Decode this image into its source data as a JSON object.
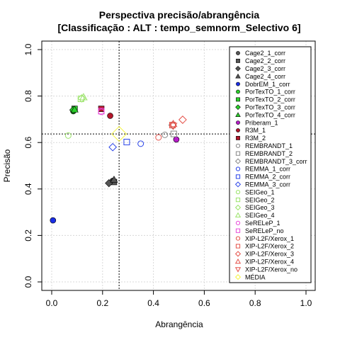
{
  "chart_data": {
    "type": "scatter",
    "title_line1": "Perspectiva precisão/abrangência",
    "title_line2": "[Classificação : ALT : tempo_semnorm_Selectivo 6]",
    "xlabel": "Abrangência",
    "ylabel": "Precisão",
    "xlim": [
      0,
      1
    ],
    "ylim": [
      0,
      1
    ],
    "xticks": [
      "0.0",
      "0.2",
      "0.4",
      "0.6",
      "0.8",
      "1.0"
    ],
    "yticks": [
      "0.0",
      "0.2",
      "0.4",
      "0.6",
      "0.8",
      "1.0"
    ],
    "xtick_values": [
      0,
      0.2,
      0.4,
      0.6,
      0.8,
      1.0
    ],
    "ytick_values": [
      0,
      0.2,
      0.4,
      0.6,
      0.8,
      1.0
    ],
    "grid": true,
    "legend_position": "top-right",
    "mean_lines": {
      "x": 0.265,
      "y": 0.637
    },
    "series": [
      {
        "name": "Cage2_1_corr",
        "color": "#555555",
        "shape": "circle",
        "fill": true,
        "x": 0.24,
        "y": 0.435
      },
      {
        "name": "Cage2_2_corr",
        "color": "#555555",
        "shape": "square",
        "fill": true,
        "x": 0.245,
        "y": 0.43
      },
      {
        "name": "Cage2_3_corr",
        "color": "#555555",
        "shape": "diamond",
        "fill": true,
        "x": 0.225,
        "y": 0.425
      },
      {
        "name": "Cage2_4_corr",
        "color": "#555555",
        "shape": "triangle",
        "fill": true,
        "x": 0.245,
        "y": 0.44
      },
      {
        "name": "DobrEM_1_corr",
        "color": "#1a2ee6",
        "shape": "circle",
        "fill": true,
        "x": 0.005,
        "y": 0.265
      },
      {
        "name": "PorTexTO_1_corr",
        "color": "#2bd12b",
        "shape": "circle",
        "fill": true,
        "x": 0.085,
        "y": 0.735
      },
      {
        "name": "PorTexTO_2_corr",
        "color": "#2bd12b",
        "shape": "square",
        "fill": true,
        "x": 0.09,
        "y": 0.745
      },
      {
        "name": "PorTexTO_3_corr",
        "color": "#2bd12b",
        "shape": "diamond",
        "fill": true,
        "x": 0.085,
        "y": 0.74
      },
      {
        "name": "PorTexTO_4_corr",
        "color": "#2bd12b",
        "shape": "triangle",
        "fill": true,
        "x": 0.09,
        "y": 0.742
      },
      {
        "name": "Priberam_1",
        "color": "#b71cc9",
        "shape": "circle",
        "fill": true,
        "x": 0.49,
        "y": 0.613
      },
      {
        "name": "R3M_1",
        "color": "#b2162a",
        "shape": "circle",
        "fill": true,
        "x": 0.23,
        "y": 0.715
      },
      {
        "name": "R3M_2",
        "color": "#b2162a",
        "shape": "square",
        "fill": true,
        "x": 0.195,
        "y": 0.745
      },
      {
        "name": "REMBRANDT_1",
        "color": "#888888",
        "shape": "circle",
        "fill": false,
        "x": 0.445,
        "y": 0.633
      },
      {
        "name": "REMBRANDT_2",
        "color": "#888888",
        "shape": "square",
        "fill": false,
        "x": 0.48,
        "y": 0.637
      },
      {
        "name": "REMBRANDT_3_corr",
        "color": "#888888",
        "shape": "diamond",
        "fill": false,
        "x": 0.475,
        "y": 0.675
      },
      {
        "name": "REMMA_1_corr",
        "color": "#2a44e8",
        "shape": "circle",
        "fill": false,
        "x": 0.35,
        "y": 0.595
      },
      {
        "name": "REMMA_2_corr",
        "color": "#2a44e8",
        "shape": "square",
        "fill": false,
        "x": 0.295,
        "y": 0.602
      },
      {
        "name": "REMMA_3_corr",
        "color": "#2a44e8",
        "shape": "diamond",
        "fill": false,
        "x": 0.24,
        "y": 0.58
      },
      {
        "name": "SEIGeo_1",
        "color": "#9be36a",
        "shape": "circle",
        "fill": false,
        "x": 0.065,
        "y": 0.63
      },
      {
        "name": "SEIGeo_2",
        "color": "#9be36a",
        "shape": "square",
        "fill": false,
        "x": 0.115,
        "y": 0.788
      },
      {
        "name": "SEIGeo_3",
        "color": "#9be36a",
        "shape": "diamond",
        "fill": false,
        "x": 0.118,
        "y": 0.79
      },
      {
        "name": "SEIGeo_4",
        "color": "#9be36a",
        "shape": "triangle",
        "fill": false,
        "x": 0.125,
        "y": 0.795
      },
      {
        "name": "SeRELeP_1",
        "color": "#e84ad9",
        "shape": "circle",
        "fill": false,
        "x": 0.195,
        "y": 0.732
      },
      {
        "name": "SeRELeP_no",
        "color": "#e84ad9",
        "shape": "square",
        "fill": false,
        "x": 0.195,
        "y": 0.735
      },
      {
        "name": "XIP-L2F/Xerox_1",
        "color": "#e5524a",
        "shape": "circle",
        "fill": false,
        "x": 0.42,
        "y": 0.622
      },
      {
        "name": "XIP-L2F/Xerox_2",
        "color": "#e5524a",
        "shape": "square",
        "fill": false,
        "x": 0.475,
        "y": 0.675
      },
      {
        "name": "XIP-L2F/Xerox_3",
        "color": "#e5524a",
        "shape": "diamond",
        "fill": false,
        "x": 0.515,
        "y": 0.698
      },
      {
        "name": "XIP-L2F/Xerox_4",
        "color": "#e5524a",
        "shape": "triangle",
        "fill": false,
        "x": 0.478,
        "y": 0.68
      },
      {
        "name": "XIP-L2F/Xerox_no",
        "color": "#e5524a",
        "shape": "triangle-down",
        "fill": false,
        "x": 0.478,
        "y": 0.672
      },
      {
        "name": "MÉDIA",
        "color": "#f5f542",
        "shape": "diamond",
        "fill": false,
        "x": 0.265,
        "y": 0.637
      }
    ]
  }
}
